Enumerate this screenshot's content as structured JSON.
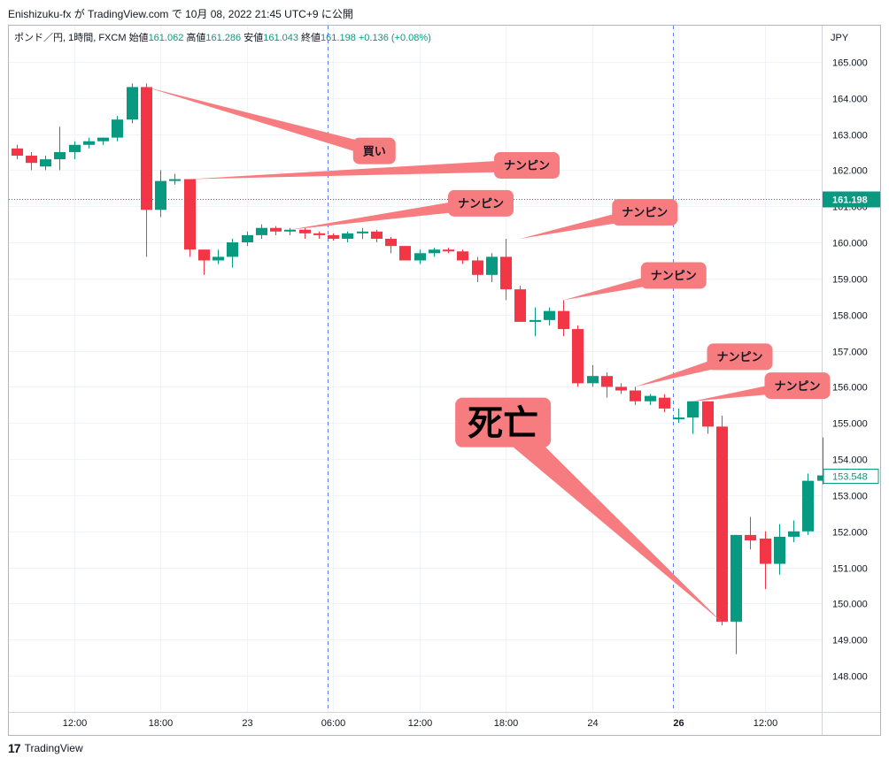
{
  "header": {
    "published": "Enishizuku-fx が TradingView.com で 10月 08, 2022 21:45 UTC+9 に公開"
  },
  "footer": {
    "brand": "TradingView",
    "logo_glyph": "17"
  },
  "chart_data": {
    "type": "candlestick",
    "title": "ポンド／円, 1時間, FXCM",
    "ohlc_labels": {
      "open_label": "始値",
      "open": "161.062",
      "high_label": "高値",
      "high": "161.286",
      "low_label": "安値",
      "low": "161.043",
      "close_label": "終値",
      "close": "161.198",
      "change": "+0.136 (+0.08%)"
    },
    "currency": "JPY",
    "ylim": [
      147.0,
      166.0
    ],
    "y_ticks": [
      "148.000",
      "149.000",
      "150.000",
      "151.000",
      "152.000",
      "153.000",
      "154.000",
      "155.000",
      "156.000",
      "157.000",
      "158.000",
      "159.000",
      "160.000",
      "161.000",
      "162.000",
      "163.000",
      "164.000",
      "165.000"
    ],
    "x_ticks": [
      {
        "i": 4,
        "label": "12:00"
      },
      {
        "i": 10,
        "label": "18:00"
      },
      {
        "i": 16,
        "label": "23"
      },
      {
        "i": 22,
        "label": "06:00"
      },
      {
        "i": 28,
        "label": "12:00"
      },
      {
        "i": 34,
        "label": "18:00"
      },
      {
        "i": 40,
        "label": "24"
      },
      {
        "i": 46,
        "label": "26"
      },
      {
        "i": 52,
        "label": "12:00"
      }
    ],
    "session_breaks": [
      21.6,
      45.6
    ],
    "last_price": "161.198",
    "current_price": "153.548",
    "colors": {
      "up": "#089981",
      "down": "#f23645",
      "annotation": "#f77c80",
      "price_line": "#089981"
    },
    "candles": [
      {
        "o": 162.6,
        "h": 162.7,
        "l": 162.3,
        "c": 162.4
      },
      {
        "o": 162.4,
        "h": 162.5,
        "l": 162.0,
        "c": 162.2
      },
      {
        "o": 162.1,
        "h": 162.4,
        "l": 162.0,
        "c": 162.3
      },
      {
        "o": 162.3,
        "h": 163.2,
        "l": 162.0,
        "c": 162.5
      },
      {
        "o": 162.5,
        "h": 162.8,
        "l": 162.3,
        "c": 162.7
      },
      {
        "o": 162.7,
        "h": 162.9,
        "l": 162.6,
        "c": 162.8
      },
      {
        "o": 162.8,
        "h": 162.9,
        "l": 162.7,
        "c": 162.9
      },
      {
        "o": 162.9,
        "h": 163.5,
        "l": 162.8,
        "c": 163.4
      },
      {
        "o": 163.4,
        "h": 164.4,
        "l": 163.3,
        "c": 164.3
      },
      {
        "o": 164.3,
        "h": 164.4,
        "l": 159.6,
        "c": 160.9
      },
      {
        "o": 160.9,
        "h": 162.0,
        "l": 160.7,
        "c": 161.7
      },
      {
        "o": 161.7,
        "h": 161.9,
        "l": 161.6,
        "c": 161.75
      },
      {
        "o": 161.75,
        "h": 161.75,
        "l": 159.6,
        "c": 159.8
      },
      {
        "o": 159.8,
        "h": 159.8,
        "l": 159.1,
        "c": 159.5
      },
      {
        "o": 159.5,
        "h": 159.8,
        "l": 159.4,
        "c": 159.6
      },
      {
        "o": 159.6,
        "h": 160.1,
        "l": 159.3,
        "c": 160.0
      },
      {
        "o": 160.0,
        "h": 160.3,
        "l": 159.9,
        "c": 160.2
      },
      {
        "o": 160.2,
        "h": 160.5,
        "l": 160.1,
        "c": 160.4
      },
      {
        "o": 160.4,
        "h": 160.45,
        "l": 160.2,
        "c": 160.3
      },
      {
        "o": 160.3,
        "h": 160.4,
        "l": 160.2,
        "c": 160.35
      },
      {
        "o": 160.35,
        "h": 160.4,
        "l": 160.1,
        "c": 160.25
      },
      {
        "o": 160.25,
        "h": 160.3,
        "l": 160.1,
        "c": 160.2
      },
      {
        "o": 160.2,
        "h": 160.25,
        "l": 160.05,
        "c": 160.1
      },
      {
        "o": 160.1,
        "h": 160.3,
        "l": 160.0,
        "c": 160.25
      },
      {
        "o": 160.25,
        "h": 160.4,
        "l": 160.1,
        "c": 160.3
      },
      {
        "o": 160.3,
        "h": 160.35,
        "l": 160.0,
        "c": 160.1
      },
      {
        "o": 160.1,
        "h": 160.15,
        "l": 159.7,
        "c": 159.9
      },
      {
        "o": 159.9,
        "h": 159.9,
        "l": 159.5,
        "c": 159.5
      },
      {
        "o": 159.5,
        "h": 159.8,
        "l": 159.4,
        "c": 159.7
      },
      {
        "o": 159.7,
        "h": 159.85,
        "l": 159.6,
        "c": 159.8
      },
      {
        "o": 159.8,
        "h": 159.85,
        "l": 159.7,
        "c": 159.75
      },
      {
        "o": 159.75,
        "h": 159.8,
        "l": 159.4,
        "c": 159.5
      },
      {
        "o": 159.5,
        "h": 159.6,
        "l": 158.9,
        "c": 159.1
      },
      {
        "o": 159.1,
        "h": 159.7,
        "l": 158.9,
        "c": 159.6
      },
      {
        "o": 159.6,
        "h": 160.1,
        "l": 158.4,
        "c": 158.7
      },
      {
        "o": 158.7,
        "h": 158.8,
        "l": 157.8,
        "c": 157.8
      },
      {
        "o": 157.8,
        "h": 158.2,
        "l": 157.4,
        "c": 157.85
      },
      {
        "o": 157.85,
        "h": 158.2,
        "l": 157.7,
        "c": 158.1
      },
      {
        "o": 158.1,
        "h": 158.4,
        "l": 157.4,
        "c": 157.6
      },
      {
        "o": 157.6,
        "h": 157.7,
        "l": 156.0,
        "c": 156.1
      },
      {
        "o": 156.1,
        "h": 156.6,
        "l": 156.0,
        "c": 156.3
      },
      {
        "o": 156.3,
        "h": 156.4,
        "l": 155.7,
        "c": 156.0
      },
      {
        "o": 156.0,
        "h": 156.1,
        "l": 155.8,
        "c": 155.9
      },
      {
        "o": 155.9,
        "h": 156.0,
        "l": 155.5,
        "c": 155.6
      },
      {
        "o": 155.6,
        "h": 155.8,
        "l": 155.5,
        "c": 155.75
      },
      {
        "o": 155.7,
        "h": 155.8,
        "l": 155.3,
        "c": 155.4
      },
      {
        "o": 155.1,
        "h": 155.4,
        "l": 155.0,
        "c": 155.15
      },
      {
        "o": 155.15,
        "h": 155.6,
        "l": 154.7,
        "c": 155.6
      },
      {
        "o": 155.6,
        "h": 155.6,
        "l": 154.7,
        "c": 154.9
      },
      {
        "o": 154.9,
        "h": 155.2,
        "l": 149.4,
        "c": 149.5
      },
      {
        "o": 149.5,
        "h": 151.9,
        "l": 148.6,
        "c": 151.9
      },
      {
        "o": 151.9,
        "h": 152.4,
        "l": 151.5,
        "c": 151.75
      },
      {
        "o": 151.8,
        "h": 152.0,
        "l": 150.4,
        "c": 151.1
      },
      {
        "o": 151.1,
        "h": 152.2,
        "l": 150.8,
        "c": 151.85
      },
      {
        "o": 151.85,
        "h": 152.3,
        "l": 151.7,
        "c": 152.0
      },
      {
        "o": 152.0,
        "h": 153.6,
        "l": 151.9,
        "c": 153.4
      },
      {
        "o": 153.4,
        "h": 154.6,
        "l": 153.3,
        "c": 153.548
      }
    ],
    "annotations": [
      {
        "text": "買い",
        "anchor_i": 9,
        "anchor_y": 164.3,
        "box_x": 23.4,
        "box_y": 162.9,
        "size": "small"
      },
      {
        "text": "ナンピン",
        "anchor_i": 12,
        "anchor_y": 161.75,
        "box_x": 33.2,
        "box_y": 162.5,
        "size": "small"
      },
      {
        "text": "ナンピン",
        "anchor_i": 19,
        "anchor_y": 160.35,
        "box_x": 30.0,
        "box_y": 161.45,
        "size": "small"
      },
      {
        "text": "ナンピン",
        "anchor_i": 35,
        "anchor_y": 160.1,
        "box_x": 41.4,
        "box_y": 161.2,
        "size": "small"
      },
      {
        "text": "ナンピン",
        "anchor_i": 38,
        "anchor_y": 158.4,
        "box_x": 43.4,
        "box_y": 159.45,
        "size": "small"
      },
      {
        "text": "ナンピン",
        "anchor_i": 43,
        "anchor_y": 156.0,
        "box_x": 48.0,
        "box_y": 157.2,
        "size": "small"
      },
      {
        "text": "ナンピン",
        "anchor_i": 47,
        "anchor_y": 155.6,
        "box_x": 52.0,
        "box_y": 156.4,
        "size": "small"
      },
      {
        "text": "死亡",
        "anchor_i": 49,
        "anchor_y": 149.5,
        "box_x": 30.5,
        "box_y": 155.7,
        "size": "large"
      }
    ]
  }
}
